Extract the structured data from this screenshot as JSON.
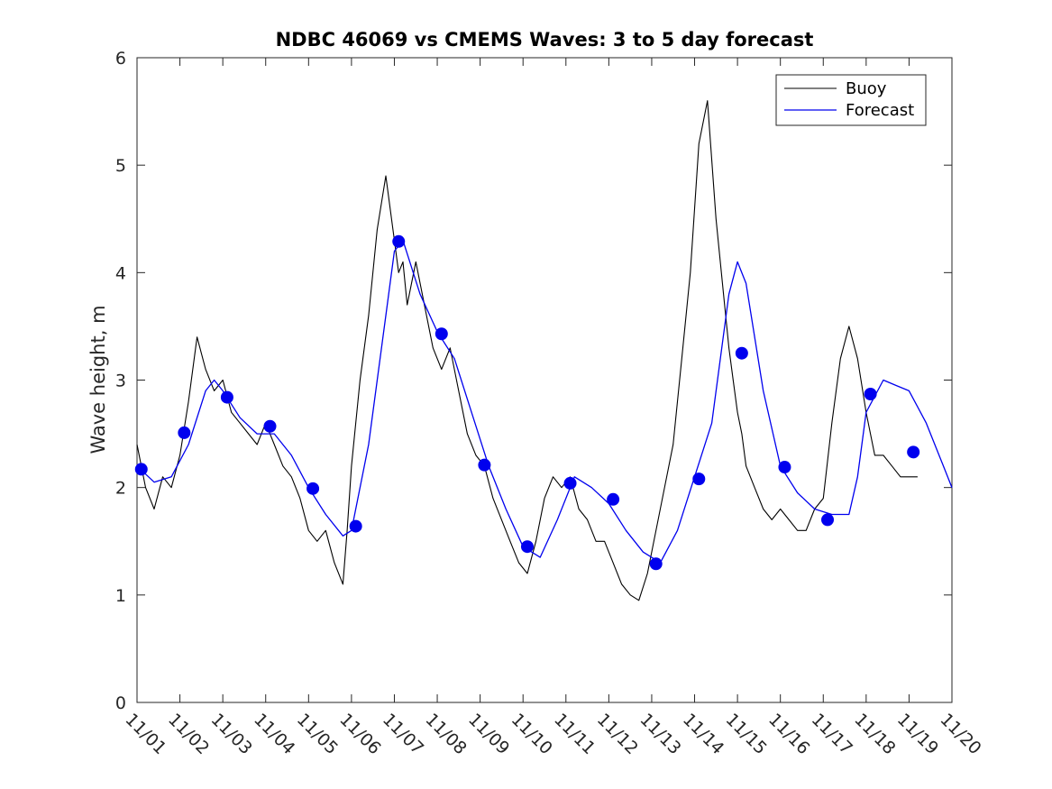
{
  "chart_data": {
    "type": "line",
    "title": "NDBC 46069 vs CMEMS Waves: 3 to 5 day forecast",
    "xlabel": "",
    "ylabel": "Wave height, m",
    "xlim": [
      0,
      19
    ],
    "ylim": [
      0,
      6
    ],
    "x_ticks": [
      {
        "x": 0,
        "label": "11/01"
      },
      {
        "x": 1,
        "label": "11/02"
      },
      {
        "x": 2,
        "label": "11/03"
      },
      {
        "x": 3,
        "label": "11/04"
      },
      {
        "x": 4,
        "label": "11/05"
      },
      {
        "x": 5,
        "label": "11/06"
      },
      {
        "x": 6,
        "label": "11/07"
      },
      {
        "x": 7,
        "label": "11/08"
      },
      {
        "x": 8,
        "label": "11/09"
      },
      {
        "x": 9,
        "label": "11/10"
      },
      {
        "x": 10,
        "label": "11/11"
      },
      {
        "x": 11,
        "label": "11/12"
      },
      {
        "x": 12,
        "label": "11/13"
      },
      {
        "x": 13,
        "label": "11/14"
      },
      {
        "x": 14,
        "label": "11/15"
      },
      {
        "x": 15,
        "label": "11/16"
      },
      {
        "x": 16,
        "label": "11/17"
      },
      {
        "x": 17,
        "label": "11/18"
      },
      {
        "x": 18,
        "label": "11/19"
      },
      {
        "x": 19,
        "label": "11/20"
      }
    ],
    "y_ticks": [
      {
        "y": 0,
        "label": "0"
      },
      {
        "y": 1,
        "label": "1"
      },
      {
        "y": 2,
        "label": "2"
      },
      {
        "y": 3,
        "label": "3"
      },
      {
        "y": 4,
        "label": "4"
      },
      {
        "y": 5,
        "label": "5"
      },
      {
        "y": 6,
        "label": "6"
      }
    ],
    "legend": {
      "position": "top-right",
      "entries": [
        "Buoy",
        "Forecast"
      ]
    },
    "colors": {
      "buoy": "#000000",
      "forecast": "#0000ee",
      "axes": "#262626"
    },
    "series": [
      {
        "name": "Buoy",
        "x": [
          0,
          0.2,
          0.4,
          0.6,
          0.8,
          1.0,
          1.2,
          1.4,
          1.6,
          1.8,
          2.0,
          2.2,
          2.4,
          2.6,
          2.8,
          3.0,
          3.2,
          3.4,
          3.6,
          3.8,
          4.0,
          4.2,
          4.4,
          4.6,
          4.8,
          4.9,
          5.0,
          5.2,
          5.4,
          5.6,
          5.8,
          6.0,
          6.1,
          6.2,
          6.3,
          6.5,
          6.7,
          6.9,
          7.1,
          7.3,
          7.5,
          7.7,
          7.9,
          8.1,
          8.3,
          8.5,
          8.7,
          8.9,
          9.1,
          9.3,
          9.5,
          9.7,
          9.9,
          10.1,
          10.3,
          10.5,
          10.7,
          10.9,
          11.1,
          11.3,
          11.5,
          11.7,
          11.9,
          12.1,
          12.3,
          12.5,
          12.7,
          12.9,
          13.1,
          13.3,
          13.5,
          13.7,
          13.8,
          13.9,
          14.0,
          14.1,
          14.2,
          14.4,
          14.6,
          14.8,
          15.0,
          15.2,
          15.4,
          15.6,
          15.8,
          16.0,
          16.2,
          16.4,
          16.6,
          16.8,
          17.0,
          17.2,
          17.4,
          17.6,
          17.8,
          18.0,
          18.2
        ],
        "values": [
          2.4,
          2.0,
          1.8,
          2.1,
          2.0,
          2.3,
          2.8,
          3.4,
          3.1,
          2.9,
          3.0,
          2.7,
          2.6,
          2.5,
          2.4,
          2.6,
          2.4,
          2.2,
          2.1,
          1.9,
          1.6,
          1.5,
          1.6,
          1.3,
          1.1,
          1.6,
          2.2,
          3.0,
          3.6,
          4.4,
          4.9,
          4.3,
          4.0,
          4.1,
          3.7,
          4.1,
          3.7,
          3.3,
          3.1,
          3.3,
          2.9,
          2.5,
          2.3,
          2.2,
          1.9,
          1.7,
          1.5,
          1.3,
          1.2,
          1.5,
          1.9,
          2.1,
          2.0,
          2.1,
          1.8,
          1.7,
          1.5,
          1.5,
          1.3,
          1.1,
          1.0,
          0.95,
          1.2,
          1.6,
          2.0,
          2.4,
          3.2,
          4.0,
          5.2,
          5.6,
          4.5,
          3.7,
          3.3,
          3.0,
          2.7,
          2.5,
          2.2,
          2.0,
          1.8,
          1.7,
          1.8,
          1.7,
          1.6,
          1.6,
          1.8,
          1.9,
          2.6,
          3.2,
          3.5,
          3.2,
          2.7,
          2.3,
          2.3,
          2.2,
          2.1,
          2.1,
          2.1
        ]
      },
      {
        "name": "Forecast",
        "x": [
          0,
          0.4,
          0.8,
          1.2,
          1.6,
          1.8,
          2.0,
          2.4,
          2.8,
          3.2,
          3.6,
          4.0,
          4.4,
          4.8,
          5.0,
          5.4,
          5.8,
          6.0,
          6.2,
          6.6,
          7.0,
          7.4,
          7.8,
          8.2,
          8.6,
          9.0,
          9.4,
          9.8,
          10.2,
          10.6,
          11.0,
          11.4,
          11.8,
          12.2,
          12.6,
          13.0,
          13.4,
          13.8,
          14.0,
          14.2,
          14.6,
          15.0,
          15.4,
          15.8,
          16.2,
          16.6,
          16.8,
          17.0,
          17.4,
          17.7,
          18.0,
          18.4,
          18.8,
          19.0
        ],
        "values": [
          2.2,
          2.05,
          2.1,
          2.4,
          2.9,
          3.0,
          2.9,
          2.65,
          2.5,
          2.5,
          2.3,
          2.0,
          1.75,
          1.55,
          1.6,
          2.4,
          3.6,
          4.2,
          4.3,
          3.8,
          3.45,
          3.2,
          2.7,
          2.2,
          1.8,
          1.45,
          1.35,
          1.7,
          2.1,
          2.0,
          1.85,
          1.6,
          1.4,
          1.3,
          1.6,
          2.1,
          2.6,
          3.8,
          4.1,
          3.9,
          2.9,
          2.2,
          1.95,
          1.8,
          1.75,
          1.75,
          2.1,
          2.7,
          3.0,
          2.95,
          2.9,
          2.6,
          2.2,
          2.0
        ]
      },
      {
        "name": "Forecast markers",
        "x": [
          0.1,
          1.1,
          2.1,
          3.1,
          4.1,
          5.1,
          6.1,
          7.1,
          8.1,
          9.1,
          10.1,
          11.1,
          12.1,
          13.1,
          14.1,
          15.1,
          16.1,
          17.1,
          18.1
        ],
        "values": [
          2.17,
          2.51,
          2.84,
          2.57,
          1.99,
          1.64,
          4.29,
          3.43,
          2.21,
          1.45,
          2.04,
          1.89,
          1.29,
          2.08,
          3.25,
          2.19,
          1.7,
          2.87,
          2.33
        ]
      }
    ]
  }
}
